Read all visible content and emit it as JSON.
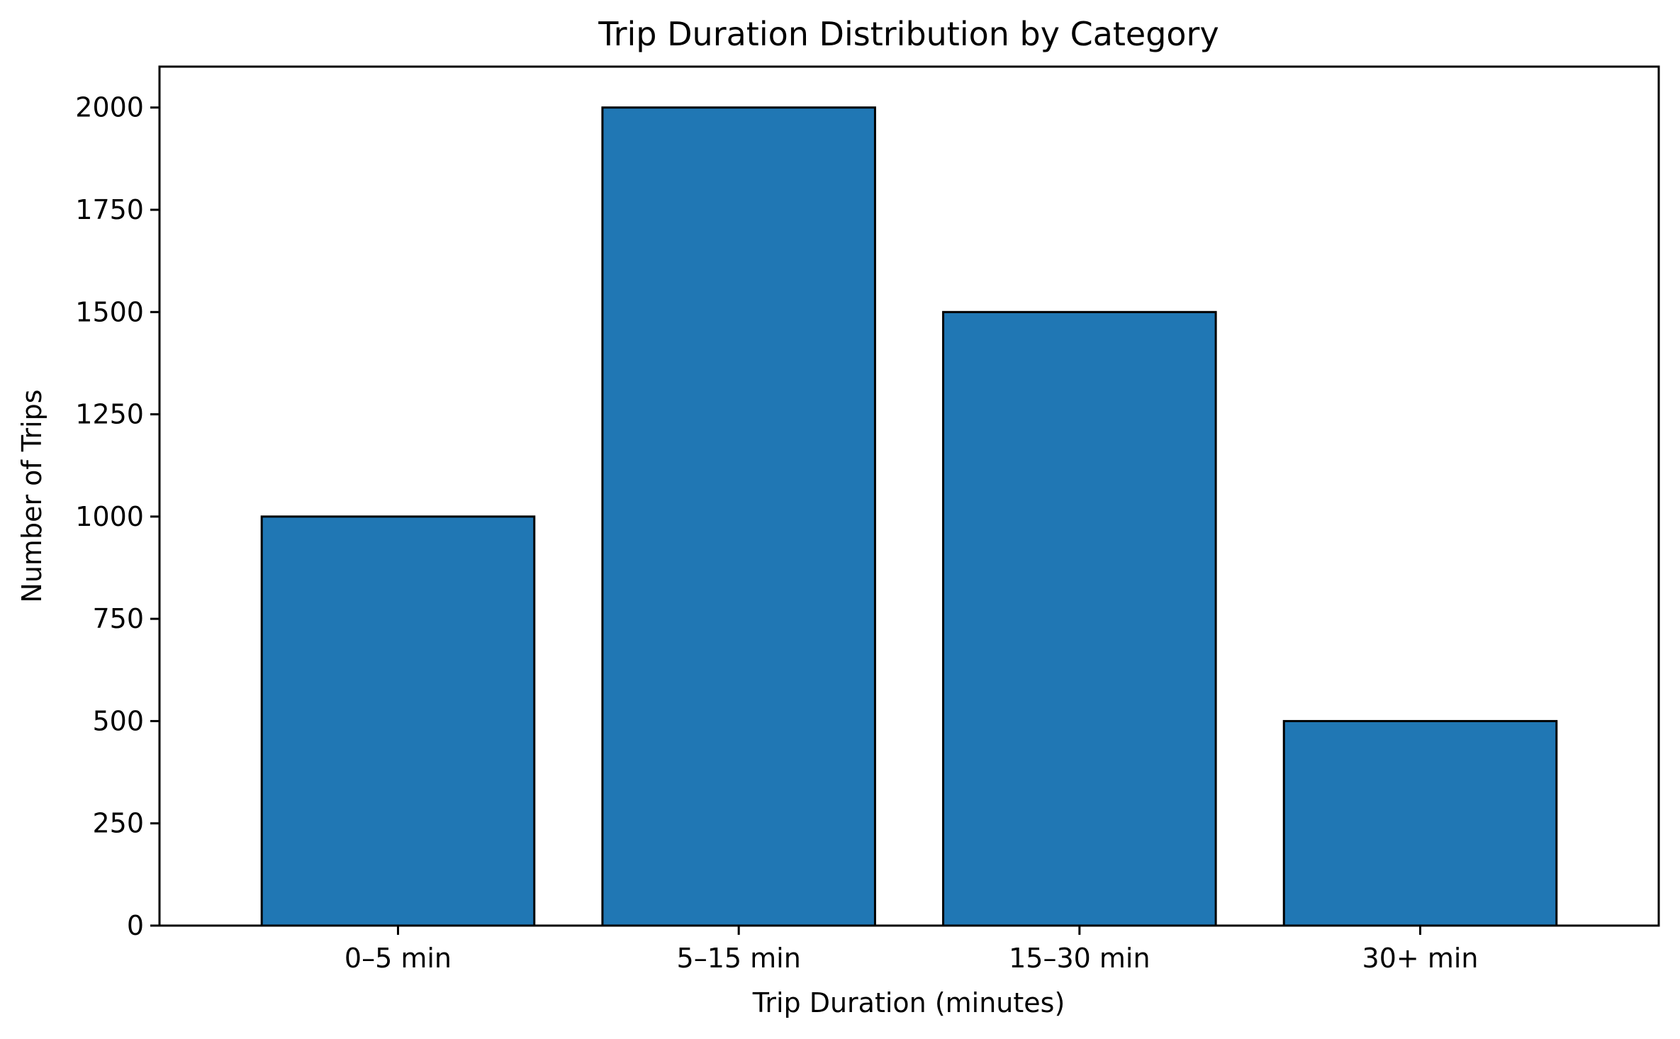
{
  "chart_data": {
    "type": "bar",
    "title": "Trip Duration Distribution by Category",
    "xlabel": "Trip Duration (minutes)",
    "ylabel": "Number of Trips",
    "categories": [
      "0–5 min",
      "5–15 min",
      "15–30 min",
      "30+ min"
    ],
    "values": [
      1000,
      2000,
      1500,
      500
    ],
    "ylim": [
      0,
      2100
    ],
    "yticks": [
      0,
      250,
      500,
      750,
      1000,
      1250,
      1500,
      1750,
      2000
    ],
    "grid": false,
    "legend": "none",
    "colors": {
      "bar_fill": "#2077b4",
      "bar_edge": "#000000",
      "axis": "#000000"
    }
  }
}
